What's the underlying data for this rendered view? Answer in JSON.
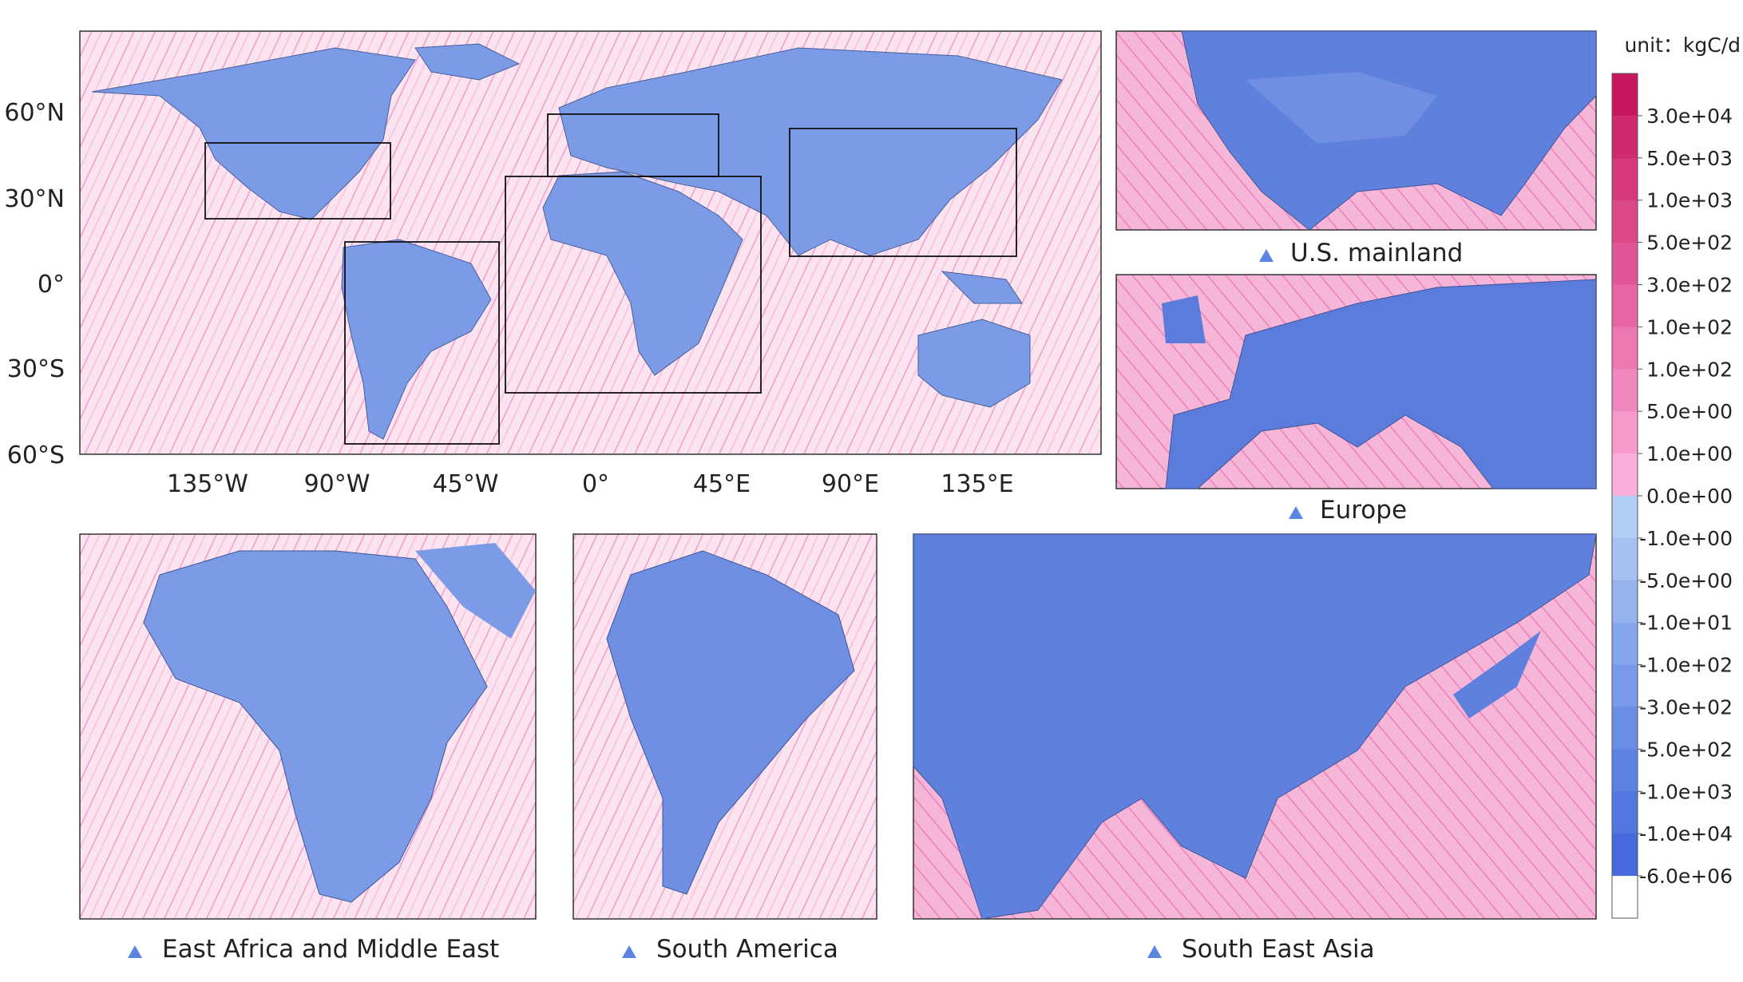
{
  "map": {
    "lat_labels": [
      "60°N",
      "30°N",
      "0°",
      "30°S",
      "60°S"
    ],
    "lon_labels": [
      "135°W",
      "90°W",
      "45°W",
      "0°",
      "45°E",
      "90°E",
      "135°E"
    ],
    "insets": [
      "U.S. mainland",
      "Europe",
      "East Africa and Middle East",
      "South America",
      "South East Asia"
    ]
  },
  "colorbar": {
    "unit": "unit：kgC/d",
    "labels": [
      "3.0e+04",
      "5.0e+03",
      "1.0e+03",
      "5.0e+02",
      "3.0e+02",
      "1.0e+02",
      "1.0e+02",
      "5.0e+00",
      "1.0e+00",
      "0.0e+00",
      "-1.0e+00",
      "-5.0e+00",
      "-1.0e+01",
      "-1.0e+02",
      "-3.0e+02",
      "-5.0e+02",
      "-1.0e+03",
      "-1.0e+04",
      "-6.0e+06"
    ],
    "colors": [
      "#c8175f",
      "#cf2a6d",
      "#d6397b",
      "#dc4888",
      "#e15795",
      "#e766a3",
      "#ec77b1",
      "#f187bf",
      "#f59acb",
      "#f9b0d9",
      "#b3cff5",
      "#a4c1f1",
      "#95b4ee",
      "#86a7eb",
      "#789ae8",
      "#6a8ee5",
      "#5d82e2",
      "#5176e0",
      "#4669dd",
      "#ffffff"
    ]
  }
}
